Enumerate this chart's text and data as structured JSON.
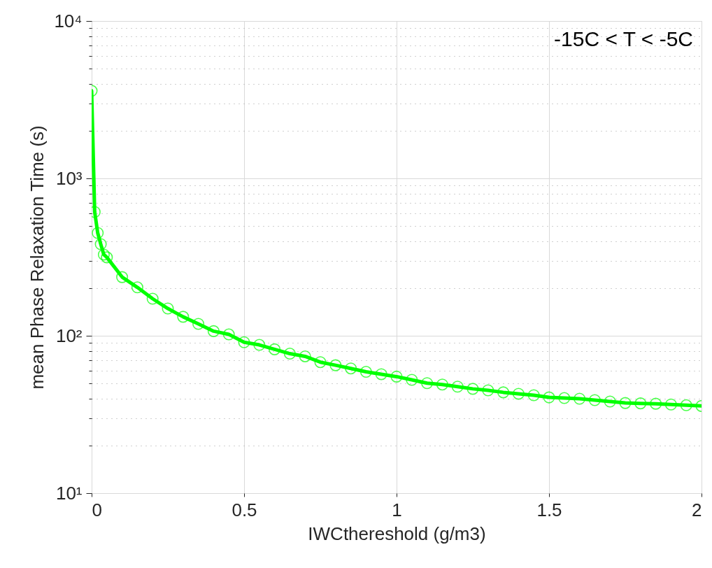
{
  "chart_data": {
    "type": "line",
    "xlabel": "IWCthereshold (g/m3)",
    "ylabel": "mean Phase Relaxation Time (s)",
    "annotations": [
      "-15C < T < -5C"
    ],
    "log": "y",
    "grid": true,
    "marker": "circle",
    "line_style": "solid",
    "xlim": [
      0,
      2
    ],
    "xticks": [
      0,
      0.5,
      1,
      1.5,
      2
    ],
    "ylim": [
      10,
      10000
    ],
    "yticks": [
      {
        "value": 10,
        "label": "10¹"
      },
      {
        "value": 100,
        "label": "10²"
      },
      {
        "value": 1000,
        "label": "10³"
      },
      {
        "value": 10000,
        "label": "10⁴"
      }
    ],
    "series": [
      {
        "color": "#00ff00",
        "x": [
          0,
          0.01,
          0.02,
          0.03,
          0.04,
          0.05,
          0.1,
          0.15,
          0.2,
          0.25,
          0.3,
          0.35,
          0.4,
          0.45,
          0.5,
          0.55,
          0.6,
          0.65,
          0.7,
          0.75,
          0.8,
          0.85,
          0.9,
          0.95,
          1.0,
          1.05,
          1.1,
          1.15,
          1.2,
          1.25,
          1.3,
          1.35,
          1.4,
          1.45,
          1.5,
          1.55,
          1.6,
          1.65,
          1.7,
          1.75,
          1.8,
          1.85,
          1.9,
          1.95,
          2.0
        ],
        "values": [
          3600,
          612,
          450,
          382,
          328,
          315,
          236,
          203,
          172,
          149,
          132,
          119,
          107,
          102,
          91,
          87.5,
          82,
          77,
          74,
          68,
          65,
          62,
          59,
          57,
          55,
          52.5,
          50,
          49,
          47.5,
          46,
          45,
          43.7,
          42.8,
          41.9,
          40.6,
          40.2,
          39.8,
          39.0,
          38.2,
          37.4,
          37.2,
          37.0,
          36.6,
          36.2,
          35.8
        ]
      }
    ]
  }
}
